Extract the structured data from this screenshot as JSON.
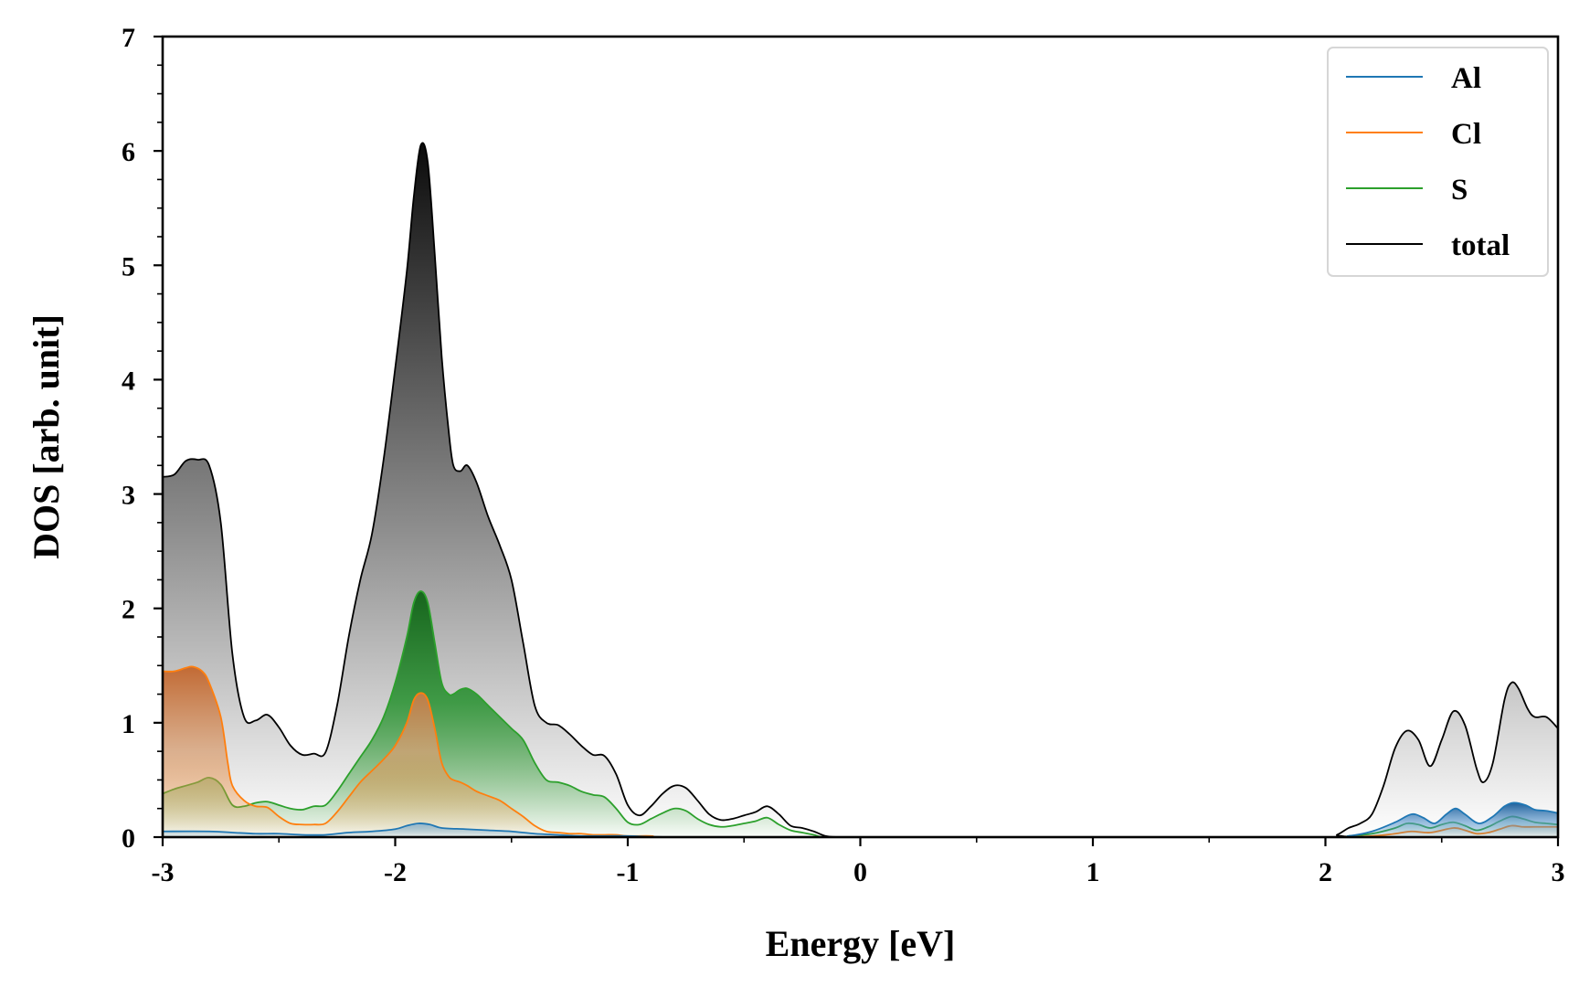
{
  "chart_data": {
    "type": "area",
    "title": "",
    "xlabel": "Energy [eV]",
    "ylabel": "DOS [arb. unit]",
    "xlim": [
      -3,
      3
    ],
    "ylim": [
      0,
      7
    ],
    "xticks": [
      -3,
      -2,
      -1,
      0,
      1,
      2,
      3
    ],
    "xtick_labels": [
      "-3",
      "-2",
      "-1",
      "0",
      "1",
      "2",
      "3"
    ],
    "yticks": [
      0,
      1,
      2,
      3,
      4,
      5,
      6,
      7
    ],
    "ytick_labels": [
      "0",
      "1",
      "2",
      "3",
      "4",
      "5",
      "6",
      "7"
    ],
    "x_minor_step": 0.5,
    "y_minor_step": 0.25,
    "grid": false,
    "legend": "top-right",
    "series": [
      {
        "name": "total",
        "color": "#000000",
        "fill": true,
        "points": [
          [
            -3.0,
            3.15
          ],
          [
            -2.95,
            3.17
          ],
          [
            -2.9,
            3.29
          ],
          [
            -2.85,
            3.3
          ],
          [
            -2.8,
            3.25
          ],
          [
            -2.75,
            2.75
          ],
          [
            -2.7,
            1.6
          ],
          [
            -2.65,
            1.05
          ],
          [
            -2.6,
            1.02
          ],
          [
            -2.55,
            1.07
          ],
          [
            -2.5,
            0.96
          ],
          [
            -2.45,
            0.8
          ],
          [
            -2.4,
            0.72
          ],
          [
            -2.35,
            0.73
          ],
          [
            -2.3,
            0.74
          ],
          [
            -2.25,
            1.15
          ],
          [
            -2.2,
            1.75
          ],
          [
            -2.15,
            2.25
          ],
          [
            -2.1,
            2.65
          ],
          [
            -2.05,
            3.3
          ],
          [
            -2.0,
            4.1
          ],
          [
            -1.95,
            4.95
          ],
          [
            -1.92,
            5.6
          ],
          [
            -1.89,
            6.05
          ],
          [
            -1.86,
            5.9
          ],
          [
            -1.83,
            5.1
          ],
          [
            -1.8,
            4.2
          ],
          [
            -1.77,
            3.55
          ],
          [
            -1.75,
            3.25
          ],
          [
            -1.72,
            3.2
          ],
          [
            -1.69,
            3.25
          ],
          [
            -1.65,
            3.1
          ],
          [
            -1.6,
            2.8
          ],
          [
            -1.55,
            2.55
          ],
          [
            -1.5,
            2.25
          ],
          [
            -1.45,
            1.7
          ],
          [
            -1.4,
            1.15
          ],
          [
            -1.35,
            1.0
          ],
          [
            -1.3,
            0.98
          ],
          [
            -1.25,
            0.9
          ],
          [
            -1.2,
            0.8
          ],
          [
            -1.15,
            0.72
          ],
          [
            -1.1,
            0.71
          ],
          [
            -1.05,
            0.55
          ],
          [
            -1.0,
            0.28
          ],
          [
            -0.95,
            0.19
          ],
          [
            -0.9,
            0.27
          ],
          [
            -0.85,
            0.38
          ],
          [
            -0.8,
            0.45
          ],
          [
            -0.75,
            0.43
          ],
          [
            -0.7,
            0.32
          ],
          [
            -0.65,
            0.2
          ],
          [
            -0.6,
            0.15
          ],
          [
            -0.55,
            0.16
          ],
          [
            -0.5,
            0.19
          ],
          [
            -0.45,
            0.22
          ],
          [
            -0.4,
            0.27
          ],
          [
            -0.35,
            0.2
          ],
          [
            -0.3,
            0.1
          ],
          [
            -0.25,
            0.08
          ],
          [
            -0.2,
            0.05
          ],
          [
            -0.15,
            0.01
          ],
          [
            -0.1,
            0.0
          ],
          [
            0.0,
            0.0
          ],
          [
            1.0,
            0.0
          ],
          [
            2.0,
            0.0
          ],
          [
            2.05,
            0.02
          ],
          [
            2.1,
            0.08
          ],
          [
            2.15,
            0.12
          ],
          [
            2.2,
            0.2
          ],
          [
            2.25,
            0.45
          ],
          [
            2.3,
            0.78
          ],
          [
            2.35,
            0.93
          ],
          [
            2.4,
            0.85
          ],
          [
            2.45,
            0.62
          ],
          [
            2.5,
            0.85
          ],
          [
            2.55,
            1.1
          ],
          [
            2.6,
            0.98
          ],
          [
            2.65,
            0.6
          ],
          [
            2.68,
            0.48
          ],
          [
            2.72,
            0.65
          ],
          [
            2.77,
            1.2
          ],
          [
            2.8,
            1.35
          ],
          [
            2.83,
            1.3
          ],
          [
            2.87,
            1.12
          ],
          [
            2.9,
            1.05
          ],
          [
            2.95,
            1.05
          ],
          [
            3.0,
            0.95
          ]
        ]
      },
      {
        "name": "S",
        "color": "#2ca02c",
        "fill": true,
        "points": [
          [
            -3.0,
            0.38
          ],
          [
            -2.95,
            0.42
          ],
          [
            -2.9,
            0.45
          ],
          [
            -2.85,
            0.48
          ],
          [
            -2.8,
            0.52
          ],
          [
            -2.75,
            0.46
          ],
          [
            -2.7,
            0.28
          ],
          [
            -2.65,
            0.27
          ],
          [
            -2.6,
            0.3
          ],
          [
            -2.55,
            0.31
          ],
          [
            -2.5,
            0.28
          ],
          [
            -2.45,
            0.25
          ],
          [
            -2.4,
            0.24
          ],
          [
            -2.35,
            0.27
          ],
          [
            -2.3,
            0.28
          ],
          [
            -2.25,
            0.4
          ],
          [
            -2.2,
            0.55
          ],
          [
            -2.15,
            0.7
          ],
          [
            -2.1,
            0.85
          ],
          [
            -2.05,
            1.05
          ],
          [
            -2.0,
            1.35
          ],
          [
            -1.95,
            1.75
          ],
          [
            -1.92,
            2.05
          ],
          [
            -1.89,
            2.15
          ],
          [
            -1.86,
            2.05
          ],
          [
            -1.83,
            1.7
          ],
          [
            -1.8,
            1.35
          ],
          [
            -1.77,
            1.25
          ],
          [
            -1.75,
            1.25
          ],
          [
            -1.72,
            1.29
          ],
          [
            -1.69,
            1.3
          ],
          [
            -1.65,
            1.25
          ],
          [
            -1.6,
            1.15
          ],
          [
            -1.55,
            1.05
          ],
          [
            -1.5,
            0.95
          ],
          [
            -1.45,
            0.85
          ],
          [
            -1.4,
            0.65
          ],
          [
            -1.35,
            0.5
          ],
          [
            -1.3,
            0.48
          ],
          [
            -1.25,
            0.45
          ],
          [
            -1.2,
            0.4
          ],
          [
            -1.15,
            0.37
          ],
          [
            -1.1,
            0.35
          ],
          [
            -1.05,
            0.25
          ],
          [
            -1.0,
            0.13
          ],
          [
            -0.95,
            0.11
          ],
          [
            -0.9,
            0.16
          ],
          [
            -0.85,
            0.21
          ],
          [
            -0.8,
            0.25
          ],
          [
            -0.75,
            0.23
          ],
          [
            -0.7,
            0.16
          ],
          [
            -0.65,
            0.11
          ],
          [
            -0.6,
            0.09
          ],
          [
            -0.55,
            0.1
          ],
          [
            -0.5,
            0.12
          ],
          [
            -0.45,
            0.14
          ],
          [
            -0.4,
            0.17
          ],
          [
            -0.35,
            0.11
          ],
          [
            -0.3,
            0.06
          ],
          [
            -0.25,
            0.04
          ],
          [
            -0.2,
            0.02
          ],
          [
            -0.15,
            0.0
          ],
          [
            0.0,
            0.0
          ],
          [
            1.0,
            0.0
          ],
          [
            2.0,
            0.0
          ],
          [
            2.1,
            0.01
          ],
          [
            2.2,
            0.03
          ],
          [
            2.3,
            0.08
          ],
          [
            2.35,
            0.12
          ],
          [
            2.4,
            0.11
          ],
          [
            2.45,
            0.08
          ],
          [
            2.5,
            0.11
          ],
          [
            2.55,
            0.13
          ],
          [
            2.6,
            0.1
          ],
          [
            2.65,
            0.06
          ],
          [
            2.7,
            0.09
          ],
          [
            2.75,
            0.14
          ],
          [
            2.8,
            0.18
          ],
          [
            2.85,
            0.16
          ],
          [
            2.9,
            0.13
          ],
          [
            2.95,
            0.12
          ],
          [
            3.0,
            0.11
          ]
        ]
      },
      {
        "name": "Cl",
        "color": "#ff7f0e",
        "fill": true,
        "points": [
          [
            -3.0,
            1.45
          ],
          [
            -2.95,
            1.45
          ],
          [
            -2.9,
            1.48
          ],
          [
            -2.87,
            1.49
          ],
          [
            -2.83,
            1.45
          ],
          [
            -2.8,
            1.35
          ],
          [
            -2.75,
            1.05
          ],
          [
            -2.72,
            0.65
          ],
          [
            -2.7,
            0.45
          ],
          [
            -2.65,
            0.32
          ],
          [
            -2.6,
            0.27
          ],
          [
            -2.55,
            0.26
          ],
          [
            -2.5,
            0.18
          ],
          [
            -2.45,
            0.12
          ],
          [
            -2.4,
            0.11
          ],
          [
            -2.35,
            0.11
          ],
          [
            -2.3,
            0.12
          ],
          [
            -2.25,
            0.22
          ],
          [
            -2.2,
            0.35
          ],
          [
            -2.15,
            0.48
          ],
          [
            -2.1,
            0.58
          ],
          [
            -2.05,
            0.68
          ],
          [
            -2.0,
            0.8
          ],
          [
            -1.95,
            1.0
          ],
          [
            -1.92,
            1.2
          ],
          [
            -1.89,
            1.26
          ],
          [
            -1.86,
            1.2
          ],
          [
            -1.83,
            0.95
          ],
          [
            -1.8,
            0.65
          ],
          [
            -1.77,
            0.53
          ],
          [
            -1.75,
            0.5
          ],
          [
            -1.72,
            0.48
          ],
          [
            -1.69,
            0.45
          ],
          [
            -1.65,
            0.4
          ],
          [
            -1.6,
            0.36
          ],
          [
            -1.55,
            0.32
          ],
          [
            -1.5,
            0.25
          ],
          [
            -1.45,
            0.18
          ],
          [
            -1.4,
            0.1
          ],
          [
            -1.35,
            0.05
          ],
          [
            -1.3,
            0.04
          ],
          [
            -1.25,
            0.03
          ],
          [
            -1.2,
            0.03
          ],
          [
            -1.15,
            0.02
          ],
          [
            -1.1,
            0.02
          ],
          [
            -1.05,
            0.02
          ],
          [
            -1.0,
            0.01
          ],
          [
            -0.9,
            0.01
          ],
          [
            -0.8,
            0.0
          ],
          [
            0.0,
            0.0
          ],
          [
            1.0,
            0.0
          ],
          [
            2.0,
            0.0
          ],
          [
            2.2,
            0.01
          ],
          [
            2.3,
            0.03
          ],
          [
            2.37,
            0.05
          ],
          [
            2.45,
            0.04
          ],
          [
            2.55,
            0.08
          ],
          [
            2.6,
            0.06
          ],
          [
            2.65,
            0.03
          ],
          [
            2.7,
            0.04
          ],
          [
            2.75,
            0.07
          ],
          [
            2.8,
            0.1
          ],
          [
            2.85,
            0.09
          ],
          [
            2.9,
            0.09
          ],
          [
            3.0,
            0.09
          ]
        ]
      },
      {
        "name": "Al",
        "color": "#1f77b4",
        "fill": true,
        "points": [
          [
            -3.0,
            0.05
          ],
          [
            -2.8,
            0.05
          ],
          [
            -2.7,
            0.04
          ],
          [
            -2.6,
            0.03
          ],
          [
            -2.5,
            0.03
          ],
          [
            -2.4,
            0.02
          ],
          [
            -2.3,
            0.02
          ],
          [
            -2.2,
            0.04
          ],
          [
            -2.1,
            0.05
          ],
          [
            -2.0,
            0.07
          ],
          [
            -1.95,
            0.1
          ],
          [
            -1.9,
            0.12
          ],
          [
            -1.85,
            0.11
          ],
          [
            -1.8,
            0.08
          ],
          [
            -1.7,
            0.07
          ],
          [
            -1.6,
            0.06
          ],
          [
            -1.5,
            0.05
          ],
          [
            -1.4,
            0.03
          ],
          [
            -1.3,
            0.02
          ],
          [
            -1.2,
            0.01
          ],
          [
            -1.0,
            0.01
          ],
          [
            -0.8,
            0.0
          ],
          [
            0.0,
            0.0
          ],
          [
            1.0,
            0.0
          ],
          [
            2.0,
            0.0
          ],
          [
            2.1,
            0.01
          ],
          [
            2.2,
            0.05
          ],
          [
            2.3,
            0.13
          ],
          [
            2.37,
            0.2
          ],
          [
            2.42,
            0.17
          ],
          [
            2.47,
            0.12
          ],
          [
            2.52,
            0.2
          ],
          [
            2.56,
            0.25
          ],
          [
            2.6,
            0.2
          ],
          [
            2.66,
            0.12
          ],
          [
            2.72,
            0.18
          ],
          [
            2.77,
            0.27
          ],
          [
            2.81,
            0.3
          ],
          [
            2.86,
            0.28
          ],
          [
            2.9,
            0.24
          ],
          [
            2.95,
            0.23
          ],
          [
            3.0,
            0.21
          ]
        ]
      }
    ]
  }
}
